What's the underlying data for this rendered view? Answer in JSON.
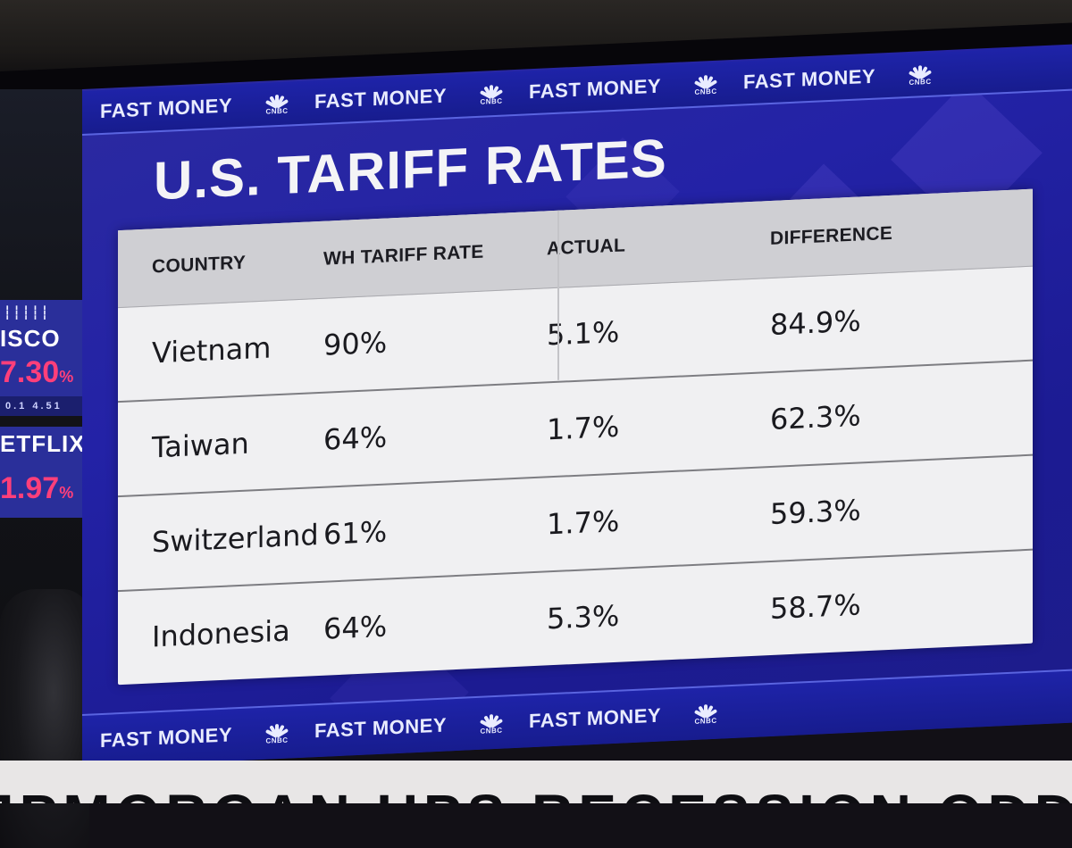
{
  "side_tickers": [
    {
      "name": "ISCO",
      "change": "7.30",
      "sub": "0.1 4.51"
    },
    {
      "name": "ETFLIX",
      "change": "1.97"
    }
  ],
  "percent_sign": "%",
  "banner": {
    "label": "FAST MONEY",
    "network": "CNBC"
  },
  "title": "U.S. TARIFF RATES",
  "table": {
    "columns": [
      "COUNTRY",
      "WH TARIFF RATE",
      "ACTUAL",
      "DIFFERENCE"
    ],
    "rows": [
      {
        "country": "Vietnam",
        "wh_rate": "90%",
        "actual": "5.1%",
        "difference": "84.9%"
      },
      {
        "country": "Taiwan",
        "wh_rate": "64%",
        "actual": "1.7%",
        "difference": "62.3%"
      },
      {
        "country": "Switzerland",
        "wh_rate": "61%",
        "actual": "1.7%",
        "difference": "59.3%"
      },
      {
        "country": "Indonesia",
        "wh_rate": "64%",
        "actual": "5.3%",
        "difference": "58.7%"
      }
    ]
  },
  "crawl_text": "JPMORGAN UPS RECESSION ODDS",
  "colors": {
    "screen_blue": "#2322a6",
    "ticker_red": "#ff3f7a",
    "table_bg": "#f0f0f2"
  }
}
